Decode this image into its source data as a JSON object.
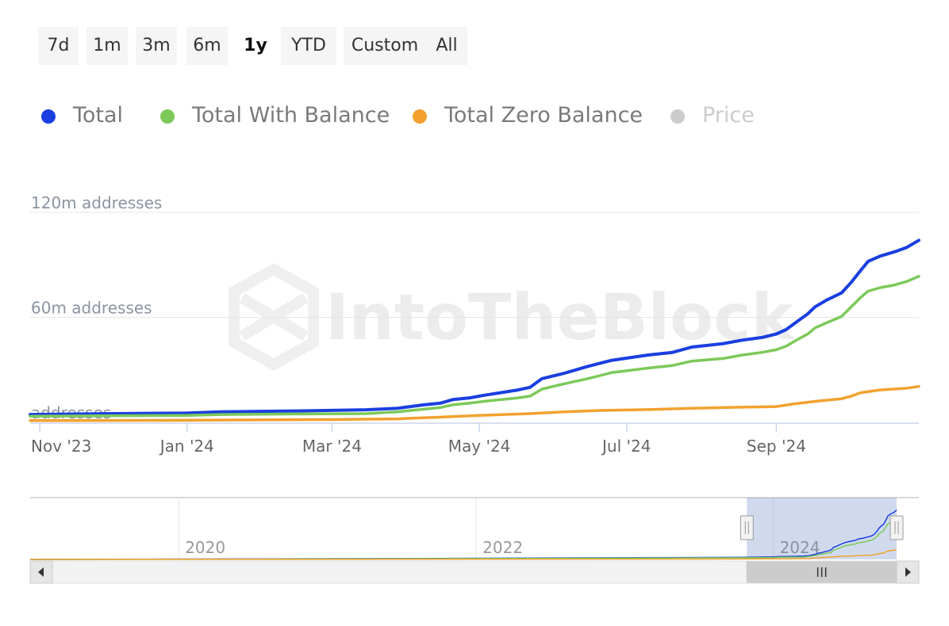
{
  "range_selector": {
    "buttons": [
      "7d",
      "1m",
      "3m",
      "6m",
      "1y",
      "YTD",
      "Custom",
      "All"
    ],
    "selected": "1y"
  },
  "legend": [
    {
      "label": "Total",
      "color": "#1a3fe0",
      "visible": true
    },
    {
      "label": "Total With Balance",
      "color": "#7cc95a",
      "visible": true
    },
    {
      "label": "Total Zero Balance",
      "color": "#f2a12e",
      "visible": true
    },
    {
      "label": "Price",
      "color": "#cccccc",
      "visible": false
    }
  ],
  "watermark": "IntoTheBlock",
  "chart_data": {
    "type": "line",
    "y_axis": {
      "ticks": [
        0,
        60,
        120
      ],
      "tick_labels": [
        "addresses",
        "60m addresses",
        "120m addresses"
      ],
      "ylim": [
        0,
        120
      ],
      "unit": "m addresses"
    },
    "x_axis": {
      "tick_labels": [
        "Nov '23",
        "Jan '24",
        "Mar '24",
        "May '24",
        "Jul '24",
        "Sep '24"
      ],
      "tick_dates": [
        "2023-11-01",
        "2024-01-01",
        "2024-03-01",
        "2024-05-01",
        "2024-07-01",
        "2024-09-01"
      ],
      "range": [
        "2023-10-28",
        "2024-10-30"
      ]
    },
    "grid": true,
    "legend_position": "top-left",
    "series": [
      {
        "name": "Total",
        "color": "#1a3fe0",
        "points": [
          [
            "2023-10-28",
            4.5
          ],
          [
            "2023-12-01",
            5.0
          ],
          [
            "2024-01-01",
            5.3
          ],
          [
            "2024-01-15",
            6.0
          ],
          [
            "2024-02-15",
            6.5
          ],
          [
            "2024-03-15",
            7.2
          ],
          [
            "2024-03-28",
            8.0
          ],
          [
            "2024-04-08",
            10.0
          ],
          [
            "2024-04-15",
            11.0
          ],
          [
            "2024-04-20",
            13.0
          ],
          [
            "2024-04-27",
            14.0
          ],
          [
            "2024-05-03",
            15.5
          ],
          [
            "2024-05-10",
            17.0
          ],
          [
            "2024-05-17",
            18.5
          ],
          [
            "2024-05-22",
            20.0
          ],
          [
            "2024-05-27",
            25.0
          ],
          [
            "2024-06-05",
            28.0
          ],
          [
            "2024-06-15",
            32.0
          ],
          [
            "2024-06-25",
            35.5
          ],
          [
            "2024-07-10",
            38.5
          ],
          [
            "2024-07-20",
            40.0
          ],
          [
            "2024-07-28",
            43.0
          ],
          [
            "2024-08-10",
            45.0
          ],
          [
            "2024-08-18",
            47.0
          ],
          [
            "2024-08-26",
            48.5
          ],
          [
            "2024-09-01",
            50.5
          ],
          [
            "2024-09-05",
            53.0
          ],
          [
            "2024-09-10",
            58.0
          ],
          [
            "2024-09-14",
            62.0
          ],
          [
            "2024-09-17",
            66.0
          ],
          [
            "2024-09-22",
            70.0
          ],
          [
            "2024-09-28",
            74.0
          ],
          [
            "2024-10-02",
            80.0
          ],
          [
            "2024-10-06",
            87.0
          ],
          [
            "2024-10-09",
            92.0
          ],
          [
            "2024-10-14",
            95.0
          ],
          [
            "2024-10-20",
            97.5
          ],
          [
            "2024-10-25",
            100.0
          ],
          [
            "2024-10-30",
            104.0
          ]
        ]
      },
      {
        "name": "Total With Balance",
        "color": "#7cc95a",
        "points": [
          [
            "2023-10-28",
            3.5
          ],
          [
            "2023-12-01",
            3.8
          ],
          [
            "2024-01-01",
            4.0
          ],
          [
            "2024-01-15",
            4.5
          ],
          [
            "2024-02-15",
            4.8
          ],
          [
            "2024-03-15",
            5.0
          ],
          [
            "2024-03-28",
            6.0
          ],
          [
            "2024-04-08",
            7.5
          ],
          [
            "2024-04-15",
            8.5
          ],
          [
            "2024-04-20",
            10.0
          ],
          [
            "2024-04-27",
            11.0
          ],
          [
            "2024-05-03",
            12.0
          ],
          [
            "2024-05-10",
            13.0
          ],
          [
            "2024-05-17",
            14.0
          ],
          [
            "2024-05-22",
            15.0
          ],
          [
            "2024-05-27",
            19.0
          ],
          [
            "2024-06-05",
            22.0
          ],
          [
            "2024-06-15",
            25.0
          ],
          [
            "2024-06-25",
            28.5
          ],
          [
            "2024-07-10",
            31.0
          ],
          [
            "2024-07-20",
            32.5
          ],
          [
            "2024-07-28",
            35.0
          ],
          [
            "2024-08-10",
            36.5
          ],
          [
            "2024-08-18",
            38.5
          ],
          [
            "2024-08-26",
            40.0
          ],
          [
            "2024-09-01",
            41.5
          ],
          [
            "2024-09-05",
            43.5
          ],
          [
            "2024-09-10",
            47.5
          ],
          [
            "2024-09-14",
            50.5
          ],
          [
            "2024-09-17",
            54.0
          ],
          [
            "2024-09-22",
            57.0
          ],
          [
            "2024-09-28",
            60.5
          ],
          [
            "2024-10-02",
            66.0
          ],
          [
            "2024-10-06",
            71.5
          ],
          [
            "2024-10-09",
            75.0
          ],
          [
            "2024-10-14",
            77.0
          ],
          [
            "2024-10-20",
            78.5
          ],
          [
            "2024-10-25",
            80.5
          ],
          [
            "2024-10-30",
            83.5
          ]
        ]
      },
      {
        "name": "Total Zero Balance",
        "color": "#f2a12e",
        "points": [
          [
            "2023-10-28",
            1.0
          ],
          [
            "2023-12-01",
            1.1
          ],
          [
            "2024-01-01",
            1.2
          ],
          [
            "2024-02-01",
            1.4
          ],
          [
            "2024-03-01",
            1.6
          ],
          [
            "2024-03-28",
            2.0
          ],
          [
            "2024-04-15",
            3.0
          ],
          [
            "2024-05-01",
            4.0
          ],
          [
            "2024-05-22",
            5.0
          ],
          [
            "2024-06-05",
            6.0
          ],
          [
            "2024-06-20",
            6.8
          ],
          [
            "2024-07-10",
            7.3
          ],
          [
            "2024-07-28",
            8.0
          ],
          [
            "2024-08-15",
            8.6
          ],
          [
            "2024-09-01",
            9.0
          ],
          [
            "2024-09-08",
            10.5
          ],
          [
            "2024-09-17",
            12.0
          ],
          [
            "2024-09-28",
            13.5
          ],
          [
            "2024-10-02",
            15.0
          ],
          [
            "2024-10-06",
            17.0
          ],
          [
            "2024-10-14",
            18.5
          ],
          [
            "2024-10-25",
            19.5
          ],
          [
            "2024-10-30",
            20.5
          ]
        ]
      }
    ]
  },
  "navigator": {
    "tick_labels": [
      "2020",
      "2022",
      "2024"
    ]
  }
}
